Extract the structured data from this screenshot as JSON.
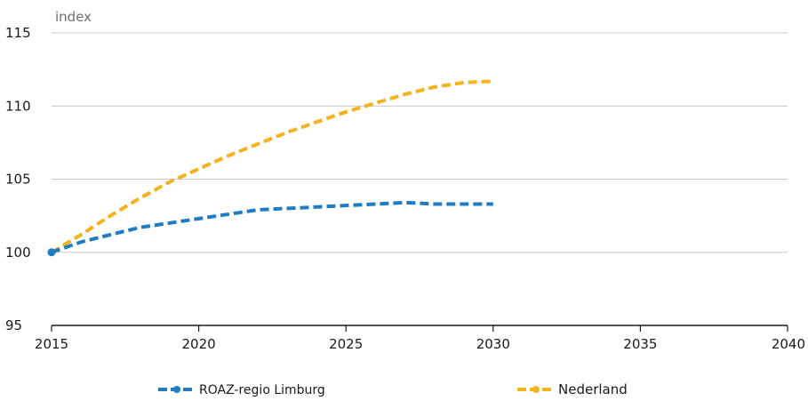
{
  "chart_data": {
    "type": "line",
    "ylabel": "index",
    "xlim": [
      2015,
      2040
    ],
    "ylim": [
      95,
      115
    ],
    "x_ticks": [
      "2015",
      "2020",
      "2025",
      "2030",
      "2035",
      "2040"
    ],
    "y_ticks": [
      "95",
      "100",
      "105",
      "110",
      "115"
    ],
    "grid": "horizontal",
    "legend_position": "bottom",
    "series": [
      {
        "name": "ROAZ-regio Limburg",
        "color": "#1e7cc4",
        "style": "dashed",
        "x": [
          2015,
          2016,
          2017,
          2018,
          2019,
          2020,
          2021,
          2022,
          2023,
          2024,
          2025,
          2026,
          2027,
          2028,
          2029,
          2030
        ],
        "values": [
          100.0,
          100.7,
          101.2,
          101.7,
          102.0,
          102.3,
          102.6,
          102.9,
          103.0,
          103.1,
          103.2,
          103.3,
          103.4,
          103.3,
          103.3,
          103.3
        ]
      },
      {
        "name": "Nederland",
        "color": "#f5b21d",
        "style": "dashed",
        "x": [
          2015,
          2016,
          2017,
          2018,
          2019,
          2020,
          2021,
          2022,
          2023,
          2024,
          2025,
          2026,
          2027,
          2028,
          2029,
          2030
        ],
        "values": [
          100.0,
          101.2,
          102.5,
          103.7,
          104.8,
          105.7,
          106.6,
          107.4,
          108.2,
          108.9,
          109.6,
          110.2,
          110.8,
          111.3,
          111.6,
          111.7
        ]
      }
    ]
  }
}
